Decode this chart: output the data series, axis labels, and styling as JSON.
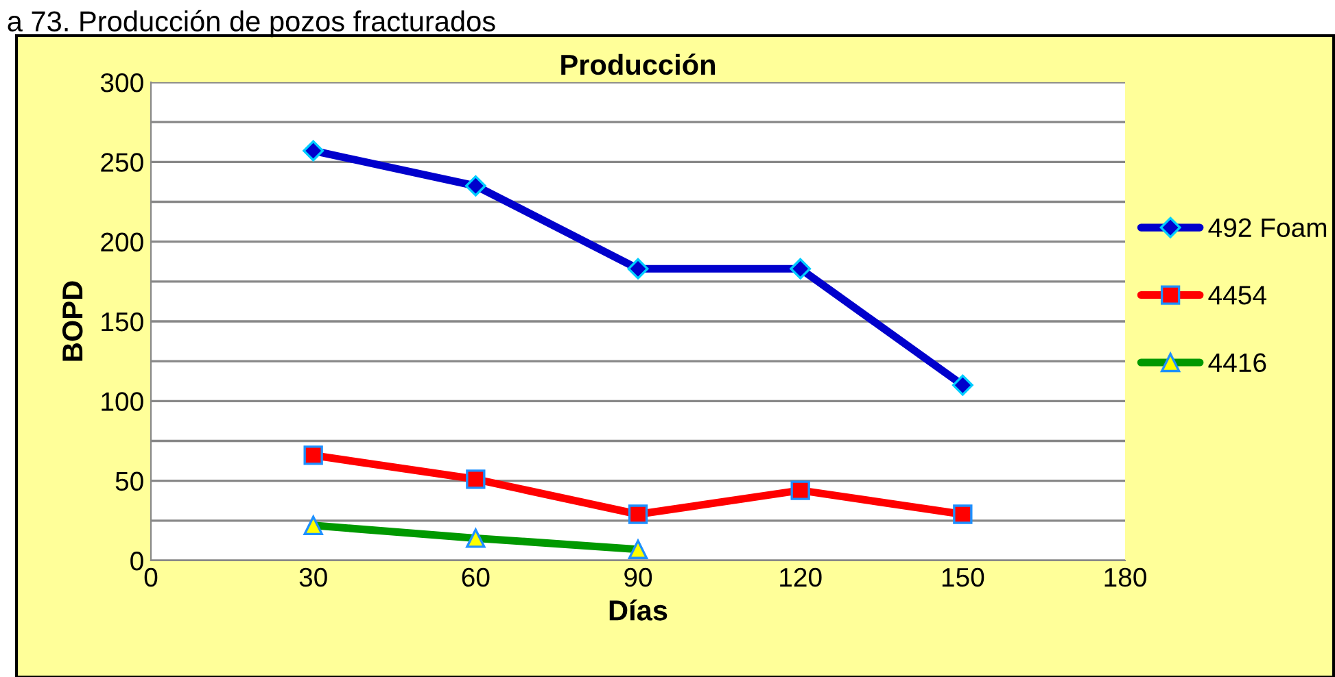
{
  "chart_data": {
    "type": "line",
    "title": "Producción",
    "xlabel": "Días",
    "ylabel": "BOPD",
    "annotations": [
      "a 73. Producción de pozos fracturados"
    ],
    "x": [
      30,
      60,
      90,
      120,
      150
    ],
    "series": [
      {
        "name": "492 Foam",
        "color": "#0000cc",
        "marker": "diamond",
        "values": [
          257,
          235,
          183,
          183,
          110
        ]
      },
      {
        "name": "4454",
        "color": "#ff0000",
        "marker": "square",
        "values": [
          66,
          51,
          29,
          44,
          29
        ]
      },
      {
        "name": "4416",
        "color": "#009900",
        "marker": "triangle",
        "values": [
          22,
          14,
          7,
          null,
          null
        ]
      }
    ],
    "xlim": [
      0,
      180
    ],
    "xticks": [
      0,
      30,
      60,
      90,
      120,
      150,
      180
    ],
    "ylim": [
      0,
      300
    ],
    "yticks": [
      0,
      {
        "value": 25,
        "label": null
      },
      50,
      {
        "value": 75,
        "label": null
      },
      100,
      {
        "value": 125,
        "label": null
      },
      150,
      {
        "value": 175,
        "label": null
      },
      200,
      {
        "value": 225,
        "label": null
      },
      250,
      {
        "value": 275,
        "label": null
      },
      300
    ],
    "grid": "y",
    "legend": "right",
    "line_style": "solid"
  }
}
